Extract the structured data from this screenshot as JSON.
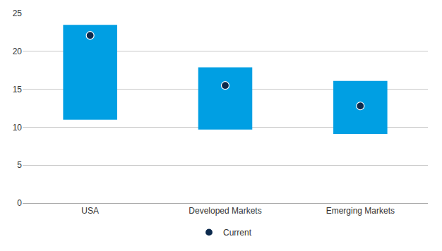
{
  "chart_data": {
    "type": "bar",
    "categories": [
      "USA",
      "Developed Markets",
      "Emerging Markets"
    ],
    "low": [
      11,
      9.7,
      9.1
    ],
    "high": [
      23.5,
      17.9,
      16.1
    ],
    "color": "#009fe3",
    "series": [
      {
        "name": "Current",
        "type": "scatter",
        "marker": "circle",
        "color": "#0c2a4d",
        "values": [
          22.1,
          15.5,
          12.8
        ]
      }
    ],
    "ylim": [
      0,
      25
    ],
    "yticks": [
      0,
      5,
      10,
      15,
      20,
      25
    ],
    "grid": true,
    "legend": "bottom"
  }
}
